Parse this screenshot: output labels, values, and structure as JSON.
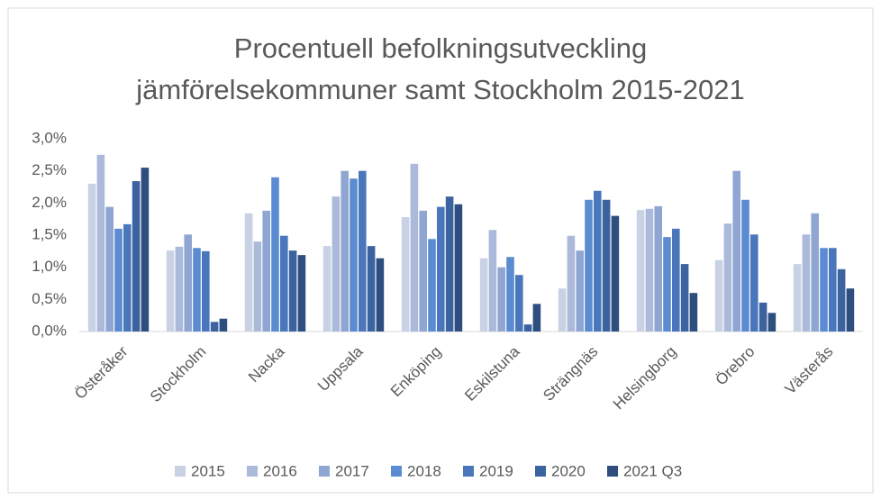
{
  "chart_data": {
    "type": "bar",
    "title": [
      "Procentuell befolkningsutveckling",
      "jämförelsekommuner samt Stockholm 2015-2021"
    ],
    "categories": [
      "Österåker",
      "Stockholm",
      "Nacka",
      "Uppsala",
      "Enköping",
      "Eskilstuna",
      "Strängnäs",
      "Helsingborg",
      "Örebro",
      "Västerås"
    ],
    "series": [
      {
        "name": "2015",
        "color": "#c9d1e5",
        "values": [
          2.3,
          1.26,
          1.84,
          1.33,
          1.78,
          1.14,
          0.67,
          1.89,
          1.11,
          1.05
        ]
      },
      {
        "name": "2016",
        "color": "#abbadb",
        "values": [
          2.75,
          1.32,
          1.4,
          2.1,
          2.61,
          1.58,
          1.49,
          1.91,
          1.68,
          1.51
        ]
      },
      {
        "name": "2017",
        "color": "#8fa6d3",
        "values": [
          1.94,
          1.51,
          1.88,
          2.5,
          1.88,
          1.0,
          1.26,
          1.95,
          2.5,
          1.84
        ]
      },
      {
        "name": "2018",
        "color": "#5b8bd0",
        "values": [
          1.6,
          1.3,
          2.4,
          2.38,
          1.44,
          1.16,
          2.05,
          1.47,
          2.05,
          1.3
        ]
      },
      {
        "name": "2019",
        "color": "#4a77bc",
        "values": [
          1.67,
          1.25,
          1.49,
          2.5,
          1.94,
          0.88,
          2.19,
          1.6,
          1.51,
          1.3
        ]
      },
      {
        "name": "2020",
        "color": "#3b63a0",
        "values": [
          2.34,
          0.15,
          1.26,
          1.33,
          2.1,
          0.11,
          2.05,
          1.05,
          0.45,
          0.97
        ]
      },
      {
        "name": "2021 Q3",
        "color": "#2e4e80",
        "values": [
          2.55,
          0.2,
          1.19,
          1.14,
          1.98,
          0.43,
          1.8,
          0.6,
          0.29,
          0.67
        ]
      }
    ],
    "ylim": [
      0,
      3
    ],
    "yticks": [
      {
        "value": 0,
        "label": "0,0%"
      },
      {
        "value": 0.5,
        "label": "0,5%"
      },
      {
        "value": 1,
        "label": "1,0%"
      },
      {
        "value": 1.5,
        "label": "1,5%"
      },
      {
        "value": 2,
        "label": "2,0%"
      },
      {
        "value": 2.5,
        "label": "2,5%"
      },
      {
        "value": 3,
        "label": "3,0%"
      }
    ],
    "grid": false,
    "legend": "bottom"
  }
}
